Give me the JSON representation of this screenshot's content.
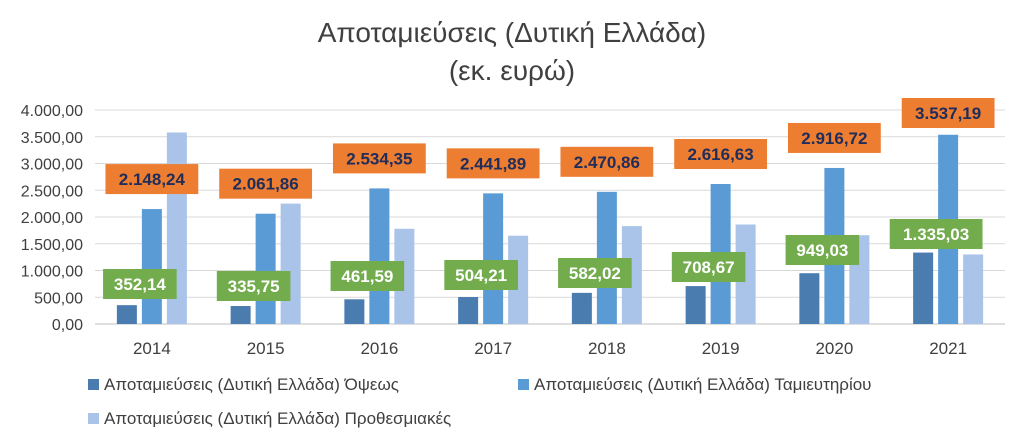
{
  "chart_data": {
    "type": "bar",
    "title": "Αποταμιεύσεις (Δυτική Ελλάδα)",
    "subtitle": "(εκ. ευρώ)",
    "categories": [
      "2014",
      "2015",
      "2016",
      "2017",
      "2018",
      "2019",
      "2020",
      "2021"
    ],
    "ylim": [
      0,
      4000
    ],
    "yticks": [
      0,
      500,
      1000,
      1500,
      2000,
      2500,
      3000,
      3500,
      4000
    ],
    "ytick_labels": [
      "0,00",
      "500,00",
      "1.000,00",
      "1.500,00",
      "2.000,00",
      "2.500,00",
      "3.000,00",
      "3.500,00",
      "4.000,00"
    ],
    "grid": true,
    "legend_position": "bottom",
    "series": [
      {
        "name": "Αποταμιεύσεις (Δυτική Ελλάδα) Όψεως",
        "color": "#4a7cb0",
        "values": [
          352.14,
          335.75,
          461.59,
          504.21,
          582.02,
          708.67,
          949.03,
          1335.03
        ],
        "data_labels": [
          "352,14",
          "335,75",
          "461,59",
          "504,21",
          "582,02",
          "708,67",
          "949,03",
          "1.335,03"
        ],
        "label_bg": "#72ac4d",
        "label_color": "#ffffff"
      },
      {
        "name": "Αποταμιεύσεις (Δυτική Ελλάδα) Ταμιευτηρίου",
        "color": "#5b9bd5",
        "values": [
          2148.24,
          2061.86,
          2534.35,
          2441.89,
          2470.86,
          2616.63,
          2916.72,
          3537.19
        ],
        "data_labels": [
          "2.148,24",
          "2.061,86",
          "2.534,35",
          "2.441,89",
          "2.470,86",
          "2.616,63",
          "2.916,72",
          "3.537,19"
        ],
        "label_bg": "#ed7d31",
        "label_color": "#1f2d5a"
      },
      {
        "name": "Αποταμιεύσεις (Δυτική Ελλάδα) Προθεσμιακές",
        "color": "#a9c4e8",
        "values": [
          3580,
          2250,
          1780,
          1650,
          1830,
          1860,
          1660,
          1300
        ]
      }
    ]
  }
}
